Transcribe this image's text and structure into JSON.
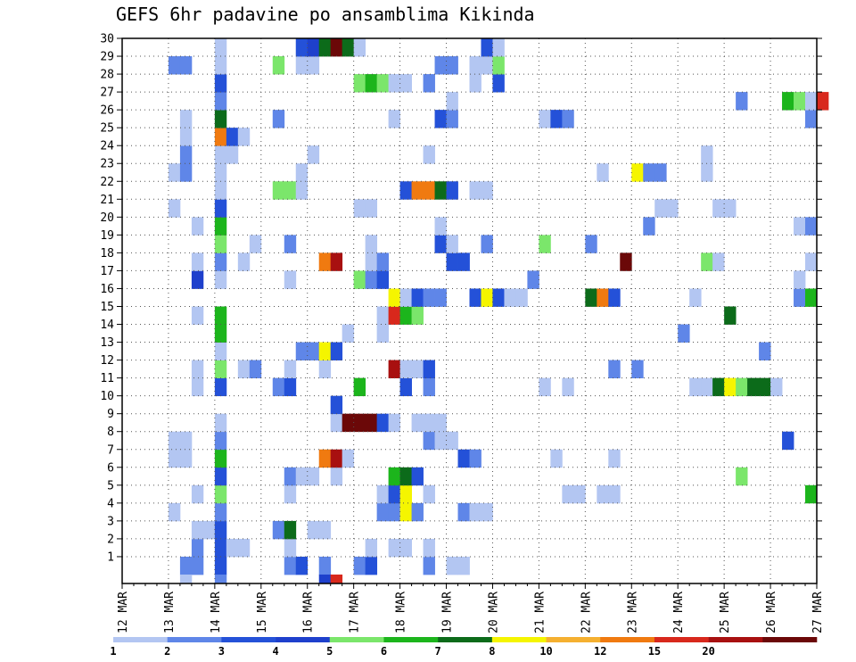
{
  "title": "GEFS 6hr padavine po ansamblima Kikinda",
  "chart_data": {
    "type": "heatmap",
    "title": "GEFS 6hr padavine po ansamblima Kikinda",
    "x_tick_labels": [
      "12 MAR",
      "13 MAR",
      "14 MAR",
      "15 MAR",
      "16 MAR",
      "17 MAR",
      "18 MAR",
      "19 MAR",
      "20 MAR",
      "21 MAR",
      "22 MAR",
      "23 MAR",
      "24 MAR",
      "25 MAR",
      "26 MAR",
      "27 MAR"
    ],
    "y_tick_labels": [
      "1",
      "2",
      "3",
      "4",
      "5",
      "6",
      "7",
      "8",
      "9",
      "10",
      "11",
      "12",
      "13",
      "14",
      "15",
      "16",
      "17",
      "18",
      "19",
      "20",
      "21",
      "22",
      "23",
      "24",
      "25",
      "26",
      "27",
      "28",
      "29",
      "30"
    ],
    "x_range": [
      "12 MAR 00Z",
      "27 MAR 00Z"
    ],
    "y_range": [
      0,
      30
    ],
    "time_step_hours": 6,
    "grid": true,
    "colorbar": {
      "levels": [
        "1",
        "2",
        "3",
        "4",
        "5",
        "6",
        "7",
        "8",
        "10",
        "12",
        "15",
        "20"
      ],
      "colors": [
        "#b3c6f2",
        "#5f86e8",
        "#2451d8",
        "#1e40cc",
        "#7be66b",
        "#1cb51c",
        "#0c6b1a",
        "#f5f500",
        "#f5b030",
        "#f07a10",
        "#d8281c",
        "#a81010",
        "#6b0808"
      ]
    },
    "cells": [
      [
        1,
        5,
        2
      ],
      [
        1,
        6,
        2
      ],
      [
        1,
        8,
        3
      ],
      [
        1,
        14,
        2
      ],
      [
        1,
        15,
        3
      ],
      [
        1,
        17,
        2
      ],
      [
        1,
        20,
        2
      ],
      [
        1,
        21,
        3
      ],
      [
        1,
        26,
        2
      ],
      [
        1,
        28,
        1
      ],
      [
        1,
        29,
        1
      ],
      [
        2,
        6,
        2
      ],
      [
        2,
        8,
        3
      ],
      [
        2,
        9,
        1
      ],
      [
        2,
        10,
        1
      ],
      [
        2,
        14,
        1
      ],
      [
        2,
        21,
        1
      ],
      [
        2,
        23,
        1
      ],
      [
        2,
        24,
        1
      ],
      [
        2,
        26,
        1
      ],
      [
        3,
        6,
        1
      ],
      [
        3,
        7,
        1
      ],
      [
        3,
        8,
        3
      ],
      [
        3,
        13,
        2
      ],
      [
        3,
        14,
        7
      ],
      [
        3,
        16,
        1
      ],
      [
        3,
        17,
        1
      ],
      [
        4,
        4,
        1
      ],
      [
        4,
        8,
        2
      ],
      [
        4,
        22,
        2
      ],
      [
        4,
        23,
        2
      ],
      [
        4,
        24,
        8
      ],
      [
        4,
        25,
        2
      ],
      [
        4,
        29,
        2
      ],
      [
        4,
        30,
        1
      ],
      [
        4,
        31,
        1
      ],
      [
        5,
        6,
        1
      ],
      [
        5,
        8,
        5
      ],
      [
        5,
        14,
        1
      ],
      [
        5,
        22,
        1
      ],
      [
        5,
        23,
        3
      ],
      [
        5,
        24,
        8
      ],
      [
        5,
        26,
        1
      ],
      [
        5,
        38,
        1
      ],
      [
        5,
        39,
        1
      ],
      [
        5,
        41,
        1
      ],
      [
        5,
        42,
        1
      ],
      [
        5,
        59,
        6
      ],
      [
        6,
        8,
        3
      ],
      [
        6,
        14,
        2
      ],
      [
        6,
        15,
        1
      ],
      [
        6,
        16,
        1
      ],
      [
        6,
        18,
        1
      ],
      [
        6,
        23,
        6
      ],
      [
        6,
        24,
        7
      ],
      [
        6,
        25,
        3
      ],
      [
        6,
        53,
        5
      ],
      [
        7,
        4,
        1
      ],
      [
        7,
        5,
        1
      ],
      [
        7,
        8,
        6
      ],
      [
        7,
        17,
        10
      ],
      [
        7,
        18,
        12
      ],
      [
        7,
        19,
        1
      ],
      [
        7,
        29,
        3
      ],
      [
        7,
        30,
        2
      ],
      [
        7,
        37,
        1
      ],
      [
        7,
        42,
        1
      ],
      [
        8,
        4,
        1
      ],
      [
        8,
        5,
        1
      ],
      [
        8,
        8,
        2
      ],
      [
        8,
        26,
        2
      ],
      [
        8,
        27,
        1
      ],
      [
        8,
        28,
        1
      ],
      [
        8,
        57,
        3
      ],
      [
        9,
        8,
        1
      ],
      [
        9,
        18,
        1
      ],
      [
        9,
        19,
        13
      ],
      [
        9,
        20,
        13
      ],
      [
        9,
        21,
        13
      ],
      [
        9,
        22,
        3
      ],
      [
        9,
        23,
        1
      ],
      [
        9,
        25,
        1
      ],
      [
        9,
        26,
        1
      ],
      [
        9,
        27,
        1
      ],
      [
        10,
        18,
        3
      ],
      [
        11,
        6,
        1
      ],
      [
        11,
        8,
        3
      ],
      [
        11,
        13,
        2
      ],
      [
        11,
        14,
        3
      ],
      [
        11,
        20,
        6
      ],
      [
        11,
        24,
        3
      ],
      [
        11,
        26,
        2
      ],
      [
        11,
        36,
        1
      ],
      [
        11,
        38,
        1
      ],
      [
        11,
        49,
        1
      ],
      [
        11,
        50,
        1
      ],
      [
        11,
        51,
        7
      ],
      [
        11,
        52,
        8
      ],
      [
        11,
        53,
        5
      ],
      [
        11,
        54,
        7
      ],
      [
        11,
        55,
        7
      ],
      [
        11,
        56,
        1
      ],
      [
        12,
        6,
        1
      ],
      [
        12,
        8,
        5
      ],
      [
        12,
        10,
        1
      ],
      [
        12,
        11,
        2
      ],
      [
        12,
        14,
        1
      ],
      [
        12,
        17,
        1
      ],
      [
        12,
        23,
        12
      ],
      [
        12,
        24,
        1
      ],
      [
        12,
        25,
        1
      ],
      [
        12,
        26,
        3
      ],
      [
        12,
        42,
        2
      ],
      [
        12,
        44,
        2
      ],
      [
        13,
        8,
        1
      ],
      [
        13,
        15,
        2
      ],
      [
        13,
        16,
        2
      ],
      [
        13,
        17,
        8
      ],
      [
        13,
        18,
        3
      ],
      [
        13,
        55,
        2
      ],
      [
        14,
        8,
        6
      ],
      [
        14,
        19,
        1
      ],
      [
        14,
        22,
        1
      ],
      [
        14,
        48,
        2
      ],
      [
        15,
        6,
        1
      ],
      [
        15,
        8,
        6
      ],
      [
        15,
        22,
        1
      ],
      [
        15,
        23,
        11
      ],
      [
        15,
        24,
        6
      ],
      [
        15,
        25,
        5
      ],
      [
        15,
        52,
        7
      ],
      [
        16,
        23,
        8
      ],
      [
        16,
        24,
        1
      ],
      [
        16,
        25,
        3
      ],
      [
        16,
        26,
        2
      ],
      [
        16,
        27,
        2
      ],
      [
        16,
        30,
        3
      ],
      [
        16,
        31,
        8
      ],
      [
        16,
        32,
        3
      ],
      [
        16,
        33,
        1
      ],
      [
        16,
        34,
        1
      ],
      [
        16,
        40,
        7
      ],
      [
        16,
        41,
        10
      ],
      [
        16,
        42,
        3
      ],
      [
        16,
        49,
        1
      ],
      [
        16,
        58,
        2
      ],
      [
        16,
        59,
        6
      ],
      [
        17,
        6,
        4
      ],
      [
        17,
        8,
        1
      ],
      [
        17,
        14,
        1
      ],
      [
        17,
        20,
        5
      ],
      [
        17,
        21,
        2
      ],
      [
        17,
        22,
        3
      ],
      [
        17,
        35,
        2
      ],
      [
        17,
        58,
        1
      ],
      [
        18,
        6,
        1
      ],
      [
        18,
        8,
        2
      ],
      [
        18,
        10,
        1
      ],
      [
        18,
        17,
        10
      ],
      [
        18,
        18,
        12
      ],
      [
        18,
        21,
        1
      ],
      [
        18,
        22,
        2
      ],
      [
        18,
        28,
        3
      ],
      [
        18,
        29,
        3
      ],
      [
        18,
        43,
        13
      ],
      [
        18,
        50,
        5
      ],
      [
        18,
        51,
        1
      ],
      [
        18,
        59,
        1
      ],
      [
        19,
        8,
        5
      ],
      [
        19,
        11,
        1
      ],
      [
        19,
        14,
        2
      ],
      [
        19,
        21,
        1
      ],
      [
        19,
        27,
        3
      ],
      [
        19,
        28,
        1
      ],
      [
        19,
        31,
        2
      ],
      [
        19,
        36,
        5
      ],
      [
        19,
        40,
        2
      ],
      [
        20,
        6,
        1
      ],
      [
        20,
        8,
        6
      ],
      [
        20,
        27,
        1
      ],
      [
        20,
        45,
        2
      ],
      [
        20,
        58,
        1
      ],
      [
        20,
        59,
        2
      ],
      [
        21,
        4,
        1
      ],
      [
        21,
        8,
        3
      ],
      [
        21,
        20,
        1
      ],
      [
        21,
        21,
        1
      ],
      [
        21,
        46,
        1
      ],
      [
        21,
        47,
        1
      ],
      [
        21,
        51,
        1
      ],
      [
        21,
        52,
        1
      ],
      [
        22,
        8,
        1
      ],
      [
        22,
        13,
        5
      ],
      [
        22,
        14,
        5
      ],
      [
        22,
        15,
        1
      ],
      [
        22,
        24,
        3
      ],
      [
        22,
        25,
        10
      ],
      [
        22,
        26,
        10
      ],
      [
        22,
        27,
        7
      ],
      [
        22,
        28,
        3
      ],
      [
        22,
        30,
        1
      ],
      [
        22,
        31,
        1
      ],
      [
        23,
        4,
        1
      ],
      [
        23,
        5,
        2
      ],
      [
        23,
        8,
        1
      ],
      [
        23,
        15,
        1
      ],
      [
        23,
        41,
        1
      ],
      [
        23,
        44,
        8
      ],
      [
        23,
        45,
        2
      ],
      [
        23,
        46,
        2
      ],
      [
        23,
        50,
        1
      ],
      [
        24,
        5,
        2
      ],
      [
        24,
        8,
        1
      ],
      [
        24,
        9,
        1
      ],
      [
        24,
        16,
        1
      ],
      [
        24,
        26,
        1
      ],
      [
        24,
        50,
        1
      ],
      [
        25,
        5,
        1
      ],
      [
        25,
        8,
        10
      ],
      [
        25,
        9,
        3
      ],
      [
        25,
        10,
        1
      ],
      [
        26,
        5,
        1
      ],
      [
        26,
        8,
        7
      ],
      [
        26,
        13,
        2
      ],
      [
        26,
        23,
        1
      ],
      [
        26,
        27,
        3
      ],
      [
        26,
        28,
        2
      ],
      [
        26,
        36,
        1
      ],
      [
        26,
        37,
        3
      ],
      [
        26,
        38,
        2
      ],
      [
        26,
        59,
        2
      ],
      [
        27,
        8,
        2
      ],
      [
        27,
        28,
        1
      ],
      [
        27,
        53,
        2
      ],
      [
        27,
        57,
        6
      ],
      [
        27,
        58,
        5
      ],
      [
        27,
        59,
        1
      ],
      [
        27,
        60,
        11
      ],
      [
        28,
        8,
        3
      ],
      [
        28,
        20,
        5
      ],
      [
        28,
        21,
        6
      ],
      [
        28,
        22,
        5
      ],
      [
        28,
        23,
        1
      ],
      [
        28,
        24,
        1
      ],
      [
        28,
        26,
        2
      ],
      [
        28,
        30,
        1
      ],
      [
        28,
        32,
        3
      ],
      [
        29,
        4,
        2
      ],
      [
        29,
        5,
        2
      ],
      [
        29,
        8,
        1
      ],
      [
        29,
        13,
        5
      ],
      [
        29,
        15,
        1
      ],
      [
        29,
        16,
        1
      ],
      [
        29,
        27,
        2
      ],
      [
        29,
        28,
        2
      ],
      [
        29,
        30,
        1
      ],
      [
        29,
        31,
        1
      ],
      [
        29,
        32,
        5
      ],
      [
        30,
        8,
        1
      ],
      [
        30,
        15,
        3
      ],
      [
        30,
        16,
        4
      ],
      [
        30,
        17,
        7
      ],
      [
        30,
        18,
        13
      ],
      [
        30,
        19,
        7
      ],
      [
        30,
        20,
        1
      ],
      [
        30,
        31,
        3
      ],
      [
        30,
        32,
        1
      ],
      [
        0,
        5,
        1
      ],
      [
        0,
        8,
        2
      ],
      [
        0,
        17,
        4
      ],
      [
        0,
        18,
        11
      ]
    ]
  }
}
